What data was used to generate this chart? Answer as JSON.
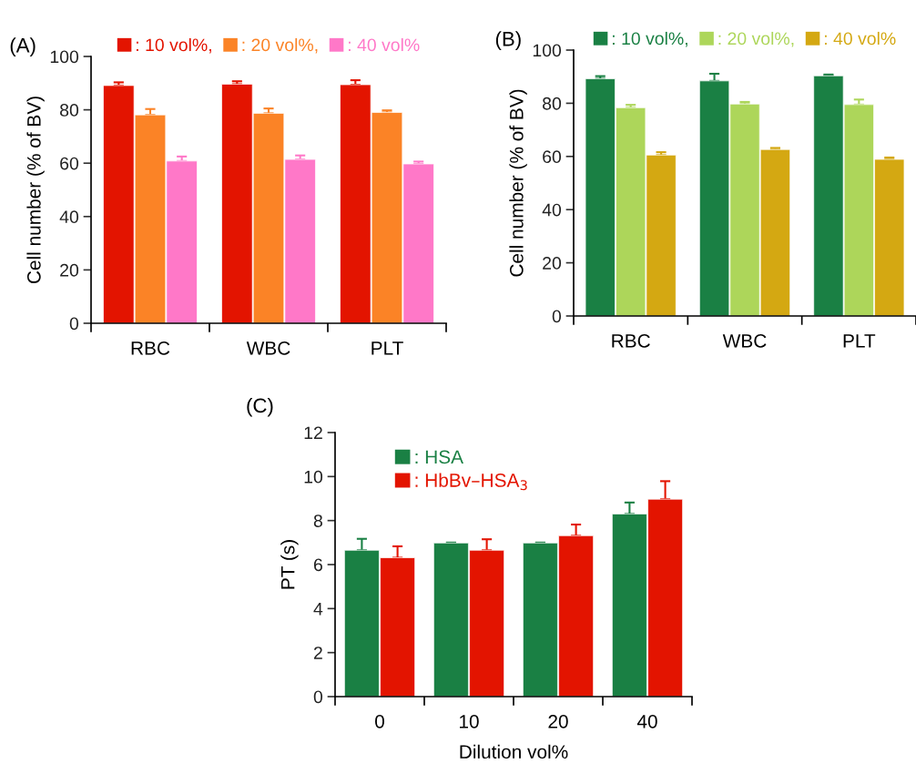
{
  "chart_data": [
    {
      "type": "bar",
      "title": "(A)",
      "ylabel": "Cell number (% of BV)",
      "categories": [
        "RBC",
        "WBC",
        "PLT"
      ],
      "ylim": [
        0,
        100
      ],
      "yticks": [
        0,
        20,
        40,
        60,
        80,
        100
      ],
      "legend": "top",
      "grid": false,
      "series": [
        {
          "name": ": 10 vol%,",
          "color": "#e31400",
          "values": [
            89.1,
            89.6,
            89.4
          ],
          "errors": [
            [
              89.1,
              90.3
            ],
            [
              89.6,
              90.7
            ],
            [
              89.4,
              91.1
            ]
          ]
        },
        {
          "name": ": 20 vol%,",
          "color": "#fb8326",
          "values": [
            78.1,
            78.7,
            79.0
          ],
          "errors": [
            [
              78.1,
              80.3
            ],
            [
              78.7,
              80.5
            ],
            [
              79.0,
              79.8
            ]
          ]
        },
        {
          "name": ": 40 vol%",
          "color": "#ff78c8",
          "values": [
            60.8,
            61.4,
            59.7
          ],
          "errors": [
            [
              60.8,
              62.5
            ],
            [
              61.4,
              62.9
            ],
            [
              59.7,
              60.6
            ]
          ]
        }
      ]
    },
    {
      "type": "bar",
      "title": "(B)",
      "ylabel": "Cell number (% of BV)",
      "categories": [
        "RBC",
        "WBC",
        "PLT"
      ],
      "ylim": [
        0,
        100
      ],
      "yticks": [
        0,
        20,
        40,
        60,
        80,
        100
      ],
      "legend": "top",
      "grid": false,
      "series": [
        {
          "name": ": 10 vol%,",
          "color": "#1a8044",
          "values": [
            89.2,
            88.4,
            90.3
          ],
          "errors": [
            [
              89.2,
              90.2
            ],
            [
              88.4,
              91.1
            ],
            [
              90.3,
              90.8
            ]
          ]
        },
        {
          "name": ": 20 vol%,",
          "color": "#add65a",
          "values": [
            78.3,
            79.7,
            79.5
          ],
          "errors": [
            [
              78.3,
              79.4
            ],
            [
              79.7,
              80.5
            ],
            [
              79.5,
              81.4
            ]
          ]
        },
        {
          "name": ": 40 vol%",
          "color": "#d4a812",
          "values": [
            60.5,
            62.6,
            58.9
          ],
          "errors": [
            [
              60.5,
              61.6
            ],
            [
              62.6,
              63.2
            ],
            [
              58.9,
              59.6
            ]
          ]
        }
      ]
    },
    {
      "type": "bar",
      "title": "(C)",
      "ylabel": "PT (s)",
      "xlabel": "Dilution vol%",
      "categories": [
        "0",
        "10",
        "20",
        "40"
      ],
      "ylim": [
        0,
        12
      ],
      "yticks": [
        0,
        2,
        4,
        6,
        8,
        10,
        12
      ],
      "legend": "top left",
      "grid": false,
      "series": [
        {
          "name": ": HSA",
          "color": "#1a8044",
          "values": [
            6.65,
            6.98,
            6.98,
            8.3
          ],
          "errors": [
            [
              6.65,
              7.17
            ],
            [
              6.98,
              7.0
            ],
            [
              6.98,
              7.0
            ],
            [
              8.3,
              8.82
            ]
          ]
        },
        {
          "name": ": HbBv–HSA$_{3}$",
          "color": "#e31400",
          "values": [
            6.31,
            6.65,
            7.31,
            8.97
          ],
          "errors": [
            [
              6.31,
              6.83
            ],
            [
              6.65,
              7.15
            ],
            [
              7.31,
              7.82
            ],
            [
              8.97,
              9.79
            ]
          ]
        }
      ]
    }
  ]
}
